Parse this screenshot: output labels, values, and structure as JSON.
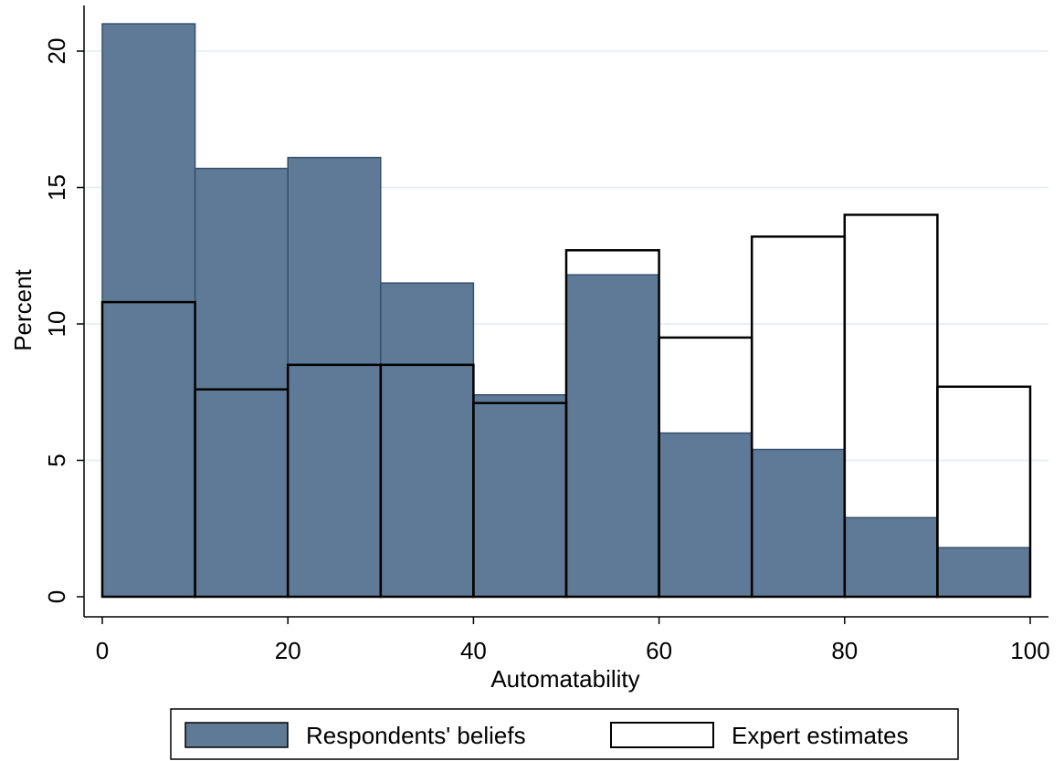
{
  "chart_data": {
    "type": "bar",
    "xlabel": "Automatability",
    "ylabel": "Percent",
    "xlim": [
      0,
      100
    ],
    "ylim": [
      0,
      21.5
    ],
    "xticks": [
      0,
      20,
      40,
      60,
      80,
      100
    ],
    "yticks": [
      0,
      5,
      10,
      15,
      20
    ],
    "bin_edges": [
      0,
      10,
      20,
      30,
      40,
      50,
      60,
      70,
      80,
      90,
      100
    ],
    "grid": true,
    "legend_position": "bottom",
    "series": [
      {
        "name": "Respondents' beliefs",
        "style": "filled",
        "color": "#5f7a96",
        "values": [
          21.0,
          15.7,
          16.1,
          11.5,
          7.4,
          11.8,
          6.0,
          5.4,
          2.9,
          1.8
        ]
      },
      {
        "name": "Expert estimates",
        "style": "outline",
        "color": "#000000",
        "values": [
          10.8,
          7.6,
          8.5,
          8.5,
          7.1,
          12.7,
          9.5,
          13.2,
          14.0,
          7.7
        ]
      }
    ]
  }
}
